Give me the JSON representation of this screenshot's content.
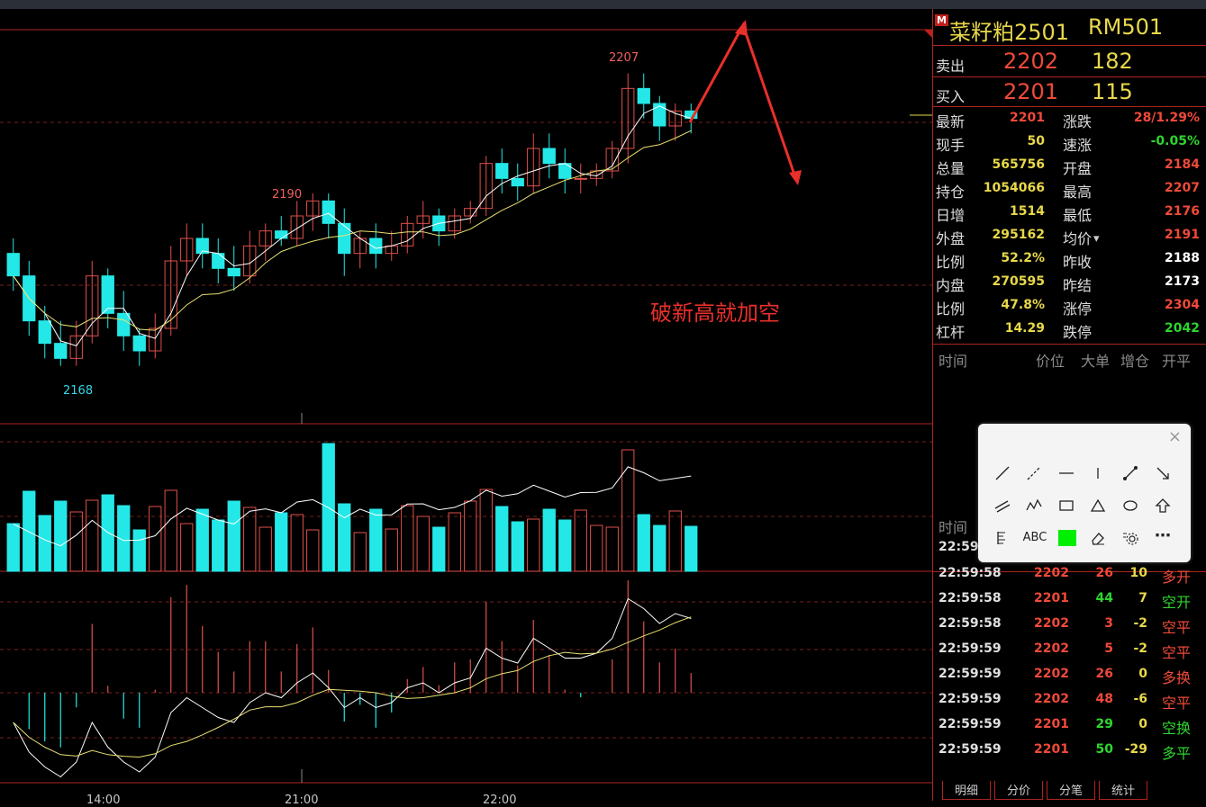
{
  "chart": {
    "annotation": "破新高就加空",
    "high_mark": "2207",
    "local_high_mark": "2190",
    "low_mark": "2168",
    "x_labels": [
      "14:00",
      "21:00",
      "22:00"
    ]
  },
  "chart_data": {
    "type": "candlestick",
    "symbol": "RM501",
    "categories": [
      "14:00",
      "21:00",
      "22:00"
    ],
    "candles": [
      {
        "o": 2183,
        "h": 2185,
        "c": 2180,
        "l": 2178
      },
      {
        "o": 2180,
        "h": 2182,
        "c": 2174,
        "l": 2172
      },
      {
        "o": 2174,
        "h": 2176,
        "c": 2171,
        "l": 2169
      },
      {
        "o": 2171,
        "h": 2174,
        "c": 2169,
        "l": 2168
      },
      {
        "o": 2169,
        "h": 2174,
        "c": 2172,
        "l": 2168
      },
      {
        "o": 2172,
        "h": 2182,
        "c": 2180,
        "l": 2171
      },
      {
        "o": 2180,
        "h": 2181,
        "c": 2175,
        "l": 2173
      },
      {
        "o": 2175,
        "h": 2178,
        "c": 2172,
        "l": 2170
      },
      {
        "o": 2172,
        "h": 2173,
        "c": 2170,
        "l": 2168
      },
      {
        "o": 2170,
        "h": 2175,
        "c": 2173,
        "l": 2169
      },
      {
        "o": 2173,
        "h": 2184,
        "c": 2182,
        "l": 2172
      },
      {
        "o": 2182,
        "h": 2187,
        "c": 2185,
        "l": 2180
      },
      {
        "o": 2185,
        "h": 2187,
        "c": 2183,
        "l": 2181
      },
      {
        "o": 2183,
        "h": 2185,
        "c": 2181,
        "l": 2179
      },
      {
        "o": 2181,
        "h": 2184,
        "c": 2180,
        "l": 2178
      },
      {
        "o": 2180,
        "h": 2186,
        "c": 2184,
        "l": 2179
      },
      {
        "o": 2184,
        "h": 2187,
        "c": 2186,
        "l": 2182
      },
      {
        "o": 2186,
        "h": 2188,
        "c": 2185,
        "l": 2184
      },
      {
        "o": 2185,
        "h": 2190,
        "c": 2188,
        "l": 2184
      },
      {
        "o": 2188,
        "h": 2191,
        "c": 2190,
        "l": 2186
      },
      {
        "o": 2190,
        "h": 2191,
        "c": 2187,
        "l": 2185
      },
      {
        "o": 2187,
        "h": 2189,
        "c": 2183,
        "l": 2180
      },
      {
        "o": 2183,
        "h": 2186,
        "c": 2185,
        "l": 2181
      },
      {
        "o": 2185,
        "h": 2187,
        "c": 2183,
        "l": 2181
      },
      {
        "o": 2183,
        "h": 2186,
        "c": 2184,
        "l": 2182
      },
      {
        "o": 2184,
        "h": 2188,
        "c": 2187,
        "l": 2183
      },
      {
        "o": 2187,
        "h": 2190,
        "c": 2188,
        "l": 2185
      },
      {
        "o": 2188,
        "h": 2189,
        "c": 2186,
        "l": 2184
      },
      {
        "o": 2186,
        "h": 2189,
        "c": 2188,
        "l": 2185
      },
      {
        "o": 2188,
        "h": 2190,
        "c": 2189,
        "l": 2187
      },
      {
        "o": 2189,
        "h": 2196,
        "c": 2195,
        "l": 2188
      },
      {
        "o": 2195,
        "h": 2197,
        "c": 2193,
        "l": 2191
      },
      {
        "o": 2193,
        "h": 2195,
        "c": 2192,
        "l": 2190
      },
      {
        "o": 2192,
        "h": 2199,
        "c": 2197,
        "l": 2191
      },
      {
        "o": 2197,
        "h": 2199,
        "c": 2195,
        "l": 2193
      },
      {
        "o": 2195,
        "h": 2197,
        "c": 2193,
        "l": 2191
      },
      {
        "o": 2193,
        "h": 2195,
        "c": 2193,
        "l": 2191
      },
      {
        "o": 2193,
        "h": 2195,
        "c": 2194,
        "l": 2192
      },
      {
        "o": 2194,
        "h": 2198,
        "c": 2197,
        "l": 2193
      },
      {
        "o": 2197,
        "h": 2207,
        "c": 2205,
        "l": 2195
      },
      {
        "o": 2205,
        "h": 2207,
        "c": 2203,
        "l": 2201
      },
      {
        "o": 2203,
        "h": 2204,
        "c": 2200,
        "l": 2198
      },
      {
        "o": 2200,
        "h": 2203,
        "c": 2202,
        "l": 2198
      },
      {
        "o": 2202,
        "h": 2203,
        "c": 2201,
        "l": 2199
      }
    ],
    "volume_scale": "relative",
    "macd": "shown"
  },
  "panel": {
    "m_badge": "M",
    "name": "菜籽粕2501",
    "code": "RM501",
    "sell_label": "卖出",
    "sell_price": "2202",
    "sell_vol": "182",
    "buy_label": "买入",
    "buy_price": "2201",
    "buy_vol": "115",
    "quotes": [
      {
        "l1": "最新",
        "v1": "2201",
        "c1": "#f04a3a",
        "l2": "涨跌",
        "v2": "28/1.29%",
        "c2": "#f04a3a"
      },
      {
        "l1": "现手",
        "v1": "50",
        "c1": "#e8d84a",
        "l2": "速涨",
        "v2": "-0.05%",
        "c2": "#2ed52e"
      },
      {
        "l1": "总量",
        "v1": "565756",
        "c1": "#e8d84a",
        "l2": "开盘",
        "v2": "2184",
        "c2": "#f04a3a"
      },
      {
        "l1": "持仓",
        "v1": "1054066",
        "c1": "#e8d84a",
        "l2": "最高",
        "v2": "2207",
        "c2": "#f04a3a"
      },
      {
        "l1": "日增",
        "v1": "1514",
        "c1": "#e8d84a",
        "l2": "最低",
        "v2": "2176",
        "c2": "#f04a3a"
      },
      {
        "l1": "外盘",
        "v1": "295162",
        "c1": "#e8d84a",
        "l2": "均价",
        "v2": "2191",
        "c2": "#f04a3a"
      },
      {
        "l1": "比例",
        "v1": "52.2%",
        "c1": "#e8d84a",
        "l2": "昨收",
        "v2": "2188",
        "c2": "#ffffff"
      },
      {
        "l1": "内盘",
        "v1": "270595",
        "c1": "#e8d84a",
        "l2": "昨结",
        "v2": "2173",
        "c2": "#ffffff"
      },
      {
        "l1": "比例",
        "v1": "47.8%",
        "c1": "#e8d84a",
        "l2": "涨停",
        "v2": "2304",
        "c2": "#f04a3a"
      },
      {
        "l1": "杠杆",
        "v1": "14.29",
        "c1": "#e8d84a",
        "l2": "跌停",
        "v2": "2042",
        "c2": "#2ed52e"
      }
    ],
    "detail_header": [
      "时间",
      "价位",
      "大单",
      "增仓",
      "开平"
    ],
    "trades_header": "时间",
    "first_trade_time": "22:59",
    "trades": [
      {
        "t": "22:59:58",
        "p": "2202",
        "v": "26",
        "vc": "#f04a3a",
        "c": "10",
        "type": "多开",
        "tc": "#f04a3a"
      },
      {
        "t": "22:59:58",
        "p": "2201",
        "v": "44",
        "vc": "#2ed52e",
        "c": "7",
        "type": "空开",
        "tc": "#2ed52e"
      },
      {
        "t": "22:59:58",
        "p": "2202",
        "v": "3",
        "vc": "#f04a3a",
        "c": "-2",
        "type": "空平",
        "tc": "#f04a3a"
      },
      {
        "t": "22:59:59",
        "p": "2202",
        "v": "5",
        "vc": "#f04a3a",
        "c": "-2",
        "type": "空平",
        "tc": "#f04a3a"
      },
      {
        "t": "22:59:59",
        "p": "2202",
        "v": "26",
        "vc": "#f04a3a",
        "c": "0",
        "type": "多换",
        "tc": "#f04a3a"
      },
      {
        "t": "22:59:59",
        "p": "2202",
        "v": "48",
        "vc": "#f04a3a",
        "c": "-6",
        "type": "空平",
        "tc": "#f04a3a"
      },
      {
        "t": "22:59:59",
        "p": "2201",
        "v": "29",
        "vc": "#2ed52e",
        "c": "0",
        "type": "空换",
        "tc": "#2ed52e"
      },
      {
        "t": "22:59:59",
        "p": "2201",
        "v": "50",
        "vc": "#2ed52e",
        "c": "-29",
        "type": "多平",
        "tc": "#2ed52e"
      }
    ],
    "tabs": [
      "明细",
      "分价",
      "分笔",
      "统计"
    ]
  },
  "toolbox": {
    "close": "×",
    "text_tool": "ABC",
    "more": "⋯",
    "tools": [
      "line-tool",
      "ray-tool",
      "horizontal-line-tool",
      "vertical-line-tool",
      "segment-tool",
      "arrow-line-tool",
      "parallel-lines-tool",
      "zigzag-tool",
      "rectangle-tool",
      "triangle-tool",
      "ellipse-tool",
      "up-arrow-tool",
      "fibonacci-tool",
      "text-tool",
      "color-swatch",
      "eraser-tool",
      "settings-gear",
      "more-tool"
    ],
    "swatch_color": "#00ee00"
  },
  "colors": {
    "up": "#e0504a",
    "down": "#24e8e8",
    "grid": "#b0251f",
    "accent_text": "#e8d84a"
  }
}
